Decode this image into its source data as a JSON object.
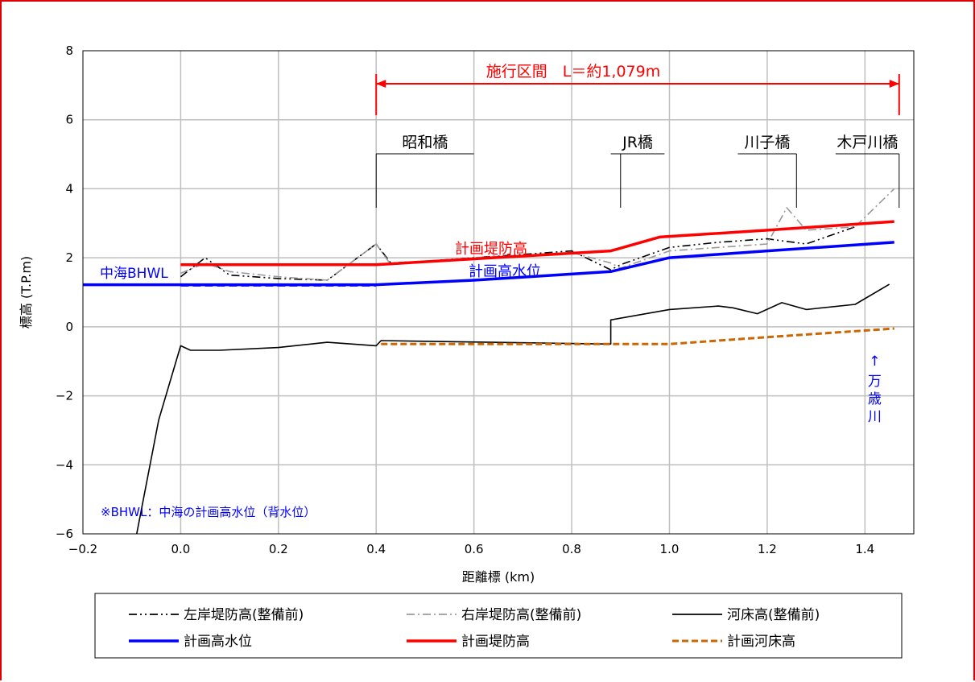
{
  "chart_data": {
    "type": "line",
    "xlabel": "距離標 (km)",
    "ylabel": "標高 (T.P.m)",
    "xlim": [
      -0.2,
      1.5
    ],
    "ylim": [
      -6,
      8
    ],
    "xticks": [
      -0.2,
      0.0,
      0.2,
      0.4,
      0.6,
      0.8,
      1.0,
      1.2,
      1.4
    ],
    "xtick_labels": [
      "−0.2",
      "0.0",
      "0.2",
      "0.4",
      "0.6",
      "0.8",
      "1.0",
      "1.2",
      "1.4"
    ],
    "yticks": [
      -6,
      -4,
      -2,
      0,
      2,
      4,
      6,
      8
    ],
    "ytick_labels": [
      "−6",
      "−4",
      "−2",
      "0",
      "2",
      "4",
      "6",
      "8"
    ],
    "grid": true,
    "legend_position": "bottom",
    "series": [
      {
        "name": "左岸堤防高(整備前)",
        "color": "#000000",
        "dash": "dashdotdot",
        "x": [
          0.0,
          0.05,
          0.1,
          0.2,
          0.3,
          0.4,
          0.43,
          0.5,
          0.6,
          0.7,
          0.8,
          0.88,
          0.9,
          1.0,
          1.1,
          1.2,
          1.28,
          1.38
        ],
        "y": [
          1.45,
          2.0,
          1.5,
          1.4,
          1.35,
          2.4,
          1.85,
          1.9,
          2.0,
          2.1,
          2.2,
          1.65,
          1.8,
          2.3,
          2.45,
          2.55,
          2.4,
          2.9
        ]
      },
      {
        "name": "右岸堤防高(整備前)",
        "color": "#999999",
        "dash": "dashdot",
        "x": [
          0.0,
          0.05,
          0.1,
          0.2,
          0.3,
          0.4,
          0.43,
          0.6,
          0.8,
          0.88,
          0.9,
          1.0,
          1.2,
          1.24,
          1.28,
          1.38,
          1.46
        ],
        "y": [
          1.55,
          1.85,
          1.6,
          1.45,
          1.35,
          2.4,
          1.8,
          2.0,
          2.15,
          1.85,
          1.7,
          2.2,
          2.4,
          3.45,
          2.8,
          2.9,
          4.0
        ]
      },
      {
        "name": "河床高(整備前)",
        "color": "#000000",
        "dash": "solid",
        "x": [
          -0.09,
          -0.045,
          0.0,
          0.02,
          0.08,
          0.2,
          0.3,
          0.4,
          0.41,
          0.88,
          0.88,
          1.0,
          1.1,
          1.13,
          1.18,
          1.23,
          1.28,
          1.38,
          1.45
        ],
        "y": [
          -6.0,
          -2.7,
          -0.55,
          -0.68,
          -0.68,
          -0.6,
          -0.45,
          -0.55,
          -0.4,
          -0.5,
          0.2,
          0.5,
          0.6,
          0.55,
          0.38,
          0.7,
          0.5,
          0.65,
          1.23
        ]
      },
      {
        "name": "計画高水位",
        "color": "#0000ff",
        "dash": "solid",
        "x": [
          -0.2,
          0.4,
          0.6,
          0.88,
          1.0,
          1.2,
          1.46
        ],
        "y": [
          1.22,
          1.22,
          1.35,
          1.6,
          2.0,
          2.2,
          2.45
        ]
      },
      {
        "name": "計画堤防高",
        "color": "#ff0000",
        "dash": "solid",
        "x": [
          0.0,
          0.4,
          0.88,
          0.98,
          1.2,
          1.46
        ],
        "y": [
          1.8,
          1.8,
          2.2,
          2.6,
          2.8,
          3.05
        ]
      },
      {
        "name": "計画河床高",
        "color": "#cc6600",
        "dash": "dashed",
        "x": [
          0.41,
          0.88,
          1.0,
          1.2,
          1.46
        ],
        "y": [
          -0.5,
          -0.5,
          -0.5,
          -0.3,
          -0.05
        ]
      }
    ],
    "current_dashed_lines": [
      {
        "color": "#0000ff",
        "x": [
          0.0,
          0.4
        ],
        "y": [
          1.2,
          1.2
        ]
      },
      {
        "color": "#ff0000",
        "x": [
          0.0,
          0.4
        ],
        "y": [
          1.8,
          1.8
        ]
      }
    ],
    "annotations": {
      "section_label": "施行区間　L＝約1,079m",
      "section_range": [
        0.4,
        1.47
      ],
      "bridges": [
        {
          "name": "昭和橋",
          "x": 0.4
        },
        {
          "name": "JR橋",
          "x": 0.9
        },
        {
          "name": "川子橋",
          "x": 1.26
        },
        {
          "name": "木戸川橋",
          "x": 1.47
        }
      ],
      "bhwl_label": "中海BHWL",
      "plan_levee_label": "計画堤防高",
      "plan_hwl_label": "計画高水位",
      "bhwl_note": "※BHWL：中海の計画高水位（背水位）",
      "tributary": {
        "arrow": "↑",
        "chars": [
          "万",
          "歳",
          "川"
        ],
        "x": 1.42
      }
    }
  }
}
